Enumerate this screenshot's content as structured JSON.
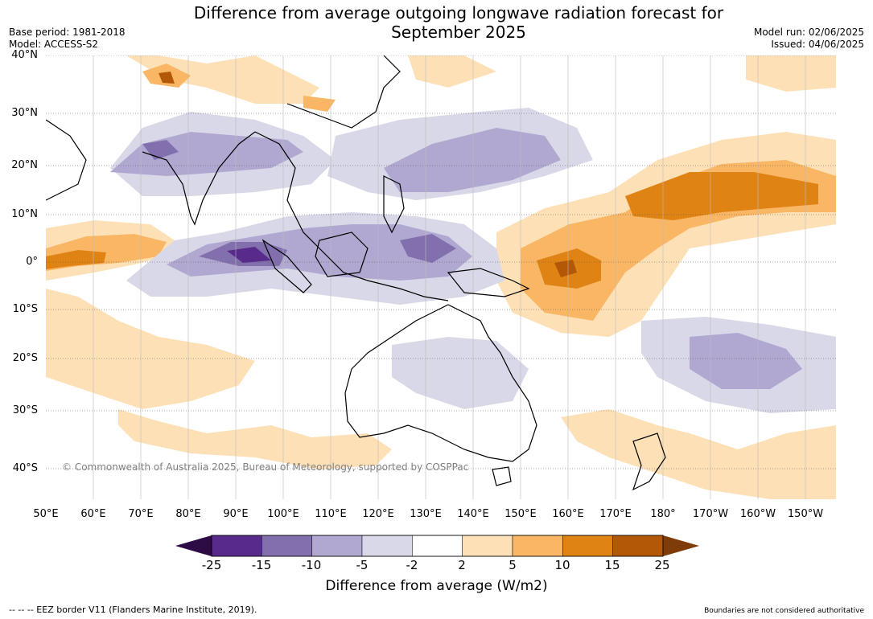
{
  "title": {
    "line1": "Difference from average outgoing longwave radiation forecast for",
    "line2": "September 2025"
  },
  "meta_left": {
    "base_period": "Base period: 1981-2018",
    "model": "Model: ACCESS-S2"
  },
  "meta_right": {
    "model_run": "Model run: 02/06/2025",
    "issued": "Issued: 04/06/2025"
  },
  "lat_labels": [
    "40°N",
    "30°N",
    "20°N",
    "10°N",
    "0°",
    "10°S",
    "20°S",
    "30°S",
    "40°S"
  ],
  "lon_labels": [
    "50°E",
    "60°E",
    "70°E",
    "80°E",
    "90°E",
    "100°E",
    "110°E",
    "120°E",
    "130°E",
    "140°E",
    "150°E",
    "160°E",
    "170°E",
    "180°",
    "170°W",
    "160°W",
    "150°W"
  ],
  "copyright": "© Commonwealth of Australia 2025, Bureau of Meteorology, supported by COSPPac",
  "colorbar": {
    "ticks": [
      "-25",
      "-15",
      "-10",
      "-5",
      "-2",
      "2",
      "5",
      "10",
      "15",
      "25"
    ],
    "label": "Difference from average (W/m2)",
    "colors": {
      "below": "#2d0b45",
      "bins": [
        "#582a8a",
        "#8170ad",
        "#b0a8d0",
        "#d8d8e8",
        "#ffffff",
        "#fde0b6",
        "#f9b765",
        "#e08315",
        "#b35806"
      ],
      "above": "#7f3b08"
    }
  },
  "footer": {
    "eez": "--  --  -- EEZ border V11 (Flanders Marine Institute, 2019).",
    "boundaries": "Boundaries are not considered authoritative"
  }
}
